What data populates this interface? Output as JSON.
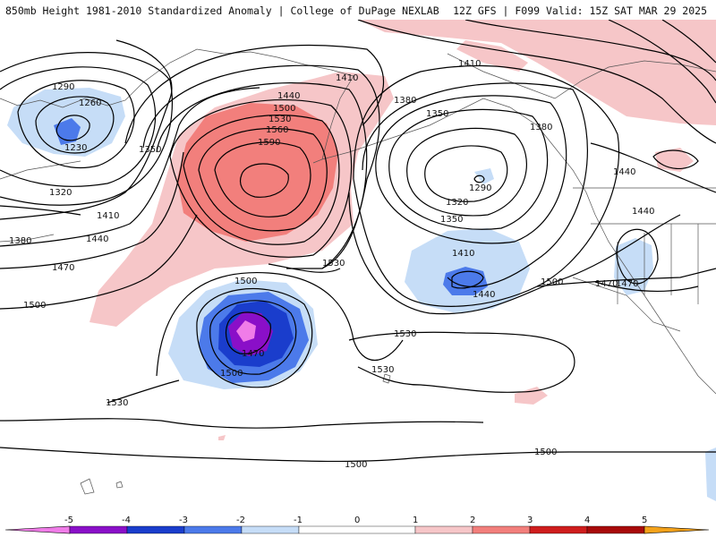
{
  "header": {
    "title": "850mb Height 1981-2010 Standardized Anomaly | College of DuPage NEXLAB",
    "run_info": "12Z GFS | F099 Valid: 15Z SAT MAR 29 2025"
  },
  "colors": {
    "n5": "#f07ce8",
    "n4": "#8a0fc8",
    "n3": "#1a3dcc",
    "n2": "#4c7aea",
    "n1": "#c6ddf7",
    "zero": "#ffffff",
    "p1": "#f6c6c8",
    "p2": "#f27f7c",
    "p3": "#cf1d1d",
    "p4": "#a80a0a",
    "p5": "#f4a21a"
  },
  "scale": {
    "ticks": [
      "-5",
      "-4",
      "-3",
      "-2",
      "-1",
      "0",
      "1",
      "2",
      "3",
      "4",
      "5"
    ]
  },
  "contour_labels": [
    {
      "text": "1290"
    },
    {
      "text": "1260"
    },
    {
      "text": "1230"
    },
    {
      "text": "1350"
    },
    {
      "text": "1320"
    },
    {
      "text": "1410"
    },
    {
      "text": "1380"
    },
    {
      "text": "1440"
    },
    {
      "text": "1470"
    },
    {
      "text": "1500"
    },
    {
      "text": "1410"
    },
    {
      "text": "1440"
    },
    {
      "text": "1500"
    },
    {
      "text": "1530"
    },
    {
      "text": "1560"
    },
    {
      "text": "1590"
    },
    {
      "text": "1410"
    },
    {
      "text": "1380"
    },
    {
      "text": "1350"
    },
    {
      "text": "1380"
    },
    {
      "text": "1440"
    },
    {
      "text": "1290"
    },
    {
      "text": "1320"
    },
    {
      "text": "1350"
    },
    {
      "text": "1440"
    },
    {
      "text": "1410"
    },
    {
      "text": "1470"
    },
    {
      "text": "1440"
    },
    {
      "text": "1500"
    },
    {
      "text": "1530"
    },
    {
      "text": "1500"
    },
    {
      "text": "1470"
    },
    {
      "text": "1500"
    },
    {
      "text": "1530"
    },
    {
      "text": "1530"
    },
    {
      "text": "1530"
    },
    {
      "text": "1500"
    },
    {
      "text": "1500"
    },
    {
      "text": "1470"
    }
  ]
}
